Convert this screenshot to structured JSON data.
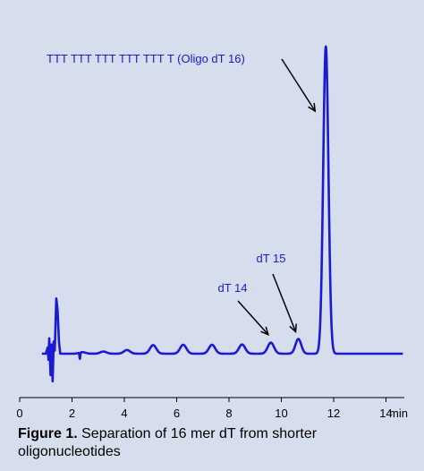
{
  "chart_data": {
    "type": "line",
    "xlabel": "min",
    "xlim": [
      0,
      14.7
    ],
    "ylim": [
      0,
      100
    ],
    "x_ticks": [
      0,
      2,
      4,
      6,
      8,
      10,
      12,
      14
    ],
    "grid": false,
    "line_color": "#1a1ad2",
    "text_color": "#1a1ad2",
    "injection_disturbance": {
      "x": [
        1.0,
        1.07,
        1.1,
        1.13,
        1.18,
        1.22,
        1.26,
        1.3,
        1.34,
        1.4,
        1.45,
        1.5,
        1.55,
        1.6
      ],
      "y": [
        0,
        2,
        -2,
        5,
        -7,
        3,
        -9,
        4,
        1,
        18,
        14,
        4,
        0,
        0
      ]
    },
    "minor_dip": {
      "x": 2.3,
      "y": -2
    },
    "peaks": [
      {
        "x": 2.4,
        "y": 0.5,
        "width": 0.12
      },
      {
        "x": 3.2,
        "y": 0.7,
        "width": 0.12
      },
      {
        "x": 4.1,
        "y": 1.2,
        "width": 0.12
      },
      {
        "x": 5.1,
        "y": 2.8,
        "width": 0.12
      },
      {
        "x": 6.25,
        "y": 2.9,
        "width": 0.12
      },
      {
        "x": 7.35,
        "y": 2.9,
        "width": 0.12
      },
      {
        "x": 8.5,
        "y": 3.0,
        "width": 0.12
      },
      {
        "x": 9.6,
        "y": 3.6,
        "width": 0.12
      },
      {
        "x": 10.65,
        "y": 4.8,
        "width": 0.11
      },
      {
        "x": 11.7,
        "y": 100,
        "width": 0.1
      }
    ],
    "annotations": [
      {
        "id": "oligo",
        "text": "TTT TTT TTT TTT TTT T (Oligo dT 16)",
        "peak_index": 9
      },
      {
        "id": "dt15",
        "text": "dT 15",
        "peak_index": 8
      },
      {
        "id": "dt14",
        "text": "dT 14",
        "peak_index": 7
      }
    ]
  },
  "caption": {
    "lead": "Figure 1.",
    "text": " Separation of 16 mer dT from shorter oligonucleotides"
  }
}
